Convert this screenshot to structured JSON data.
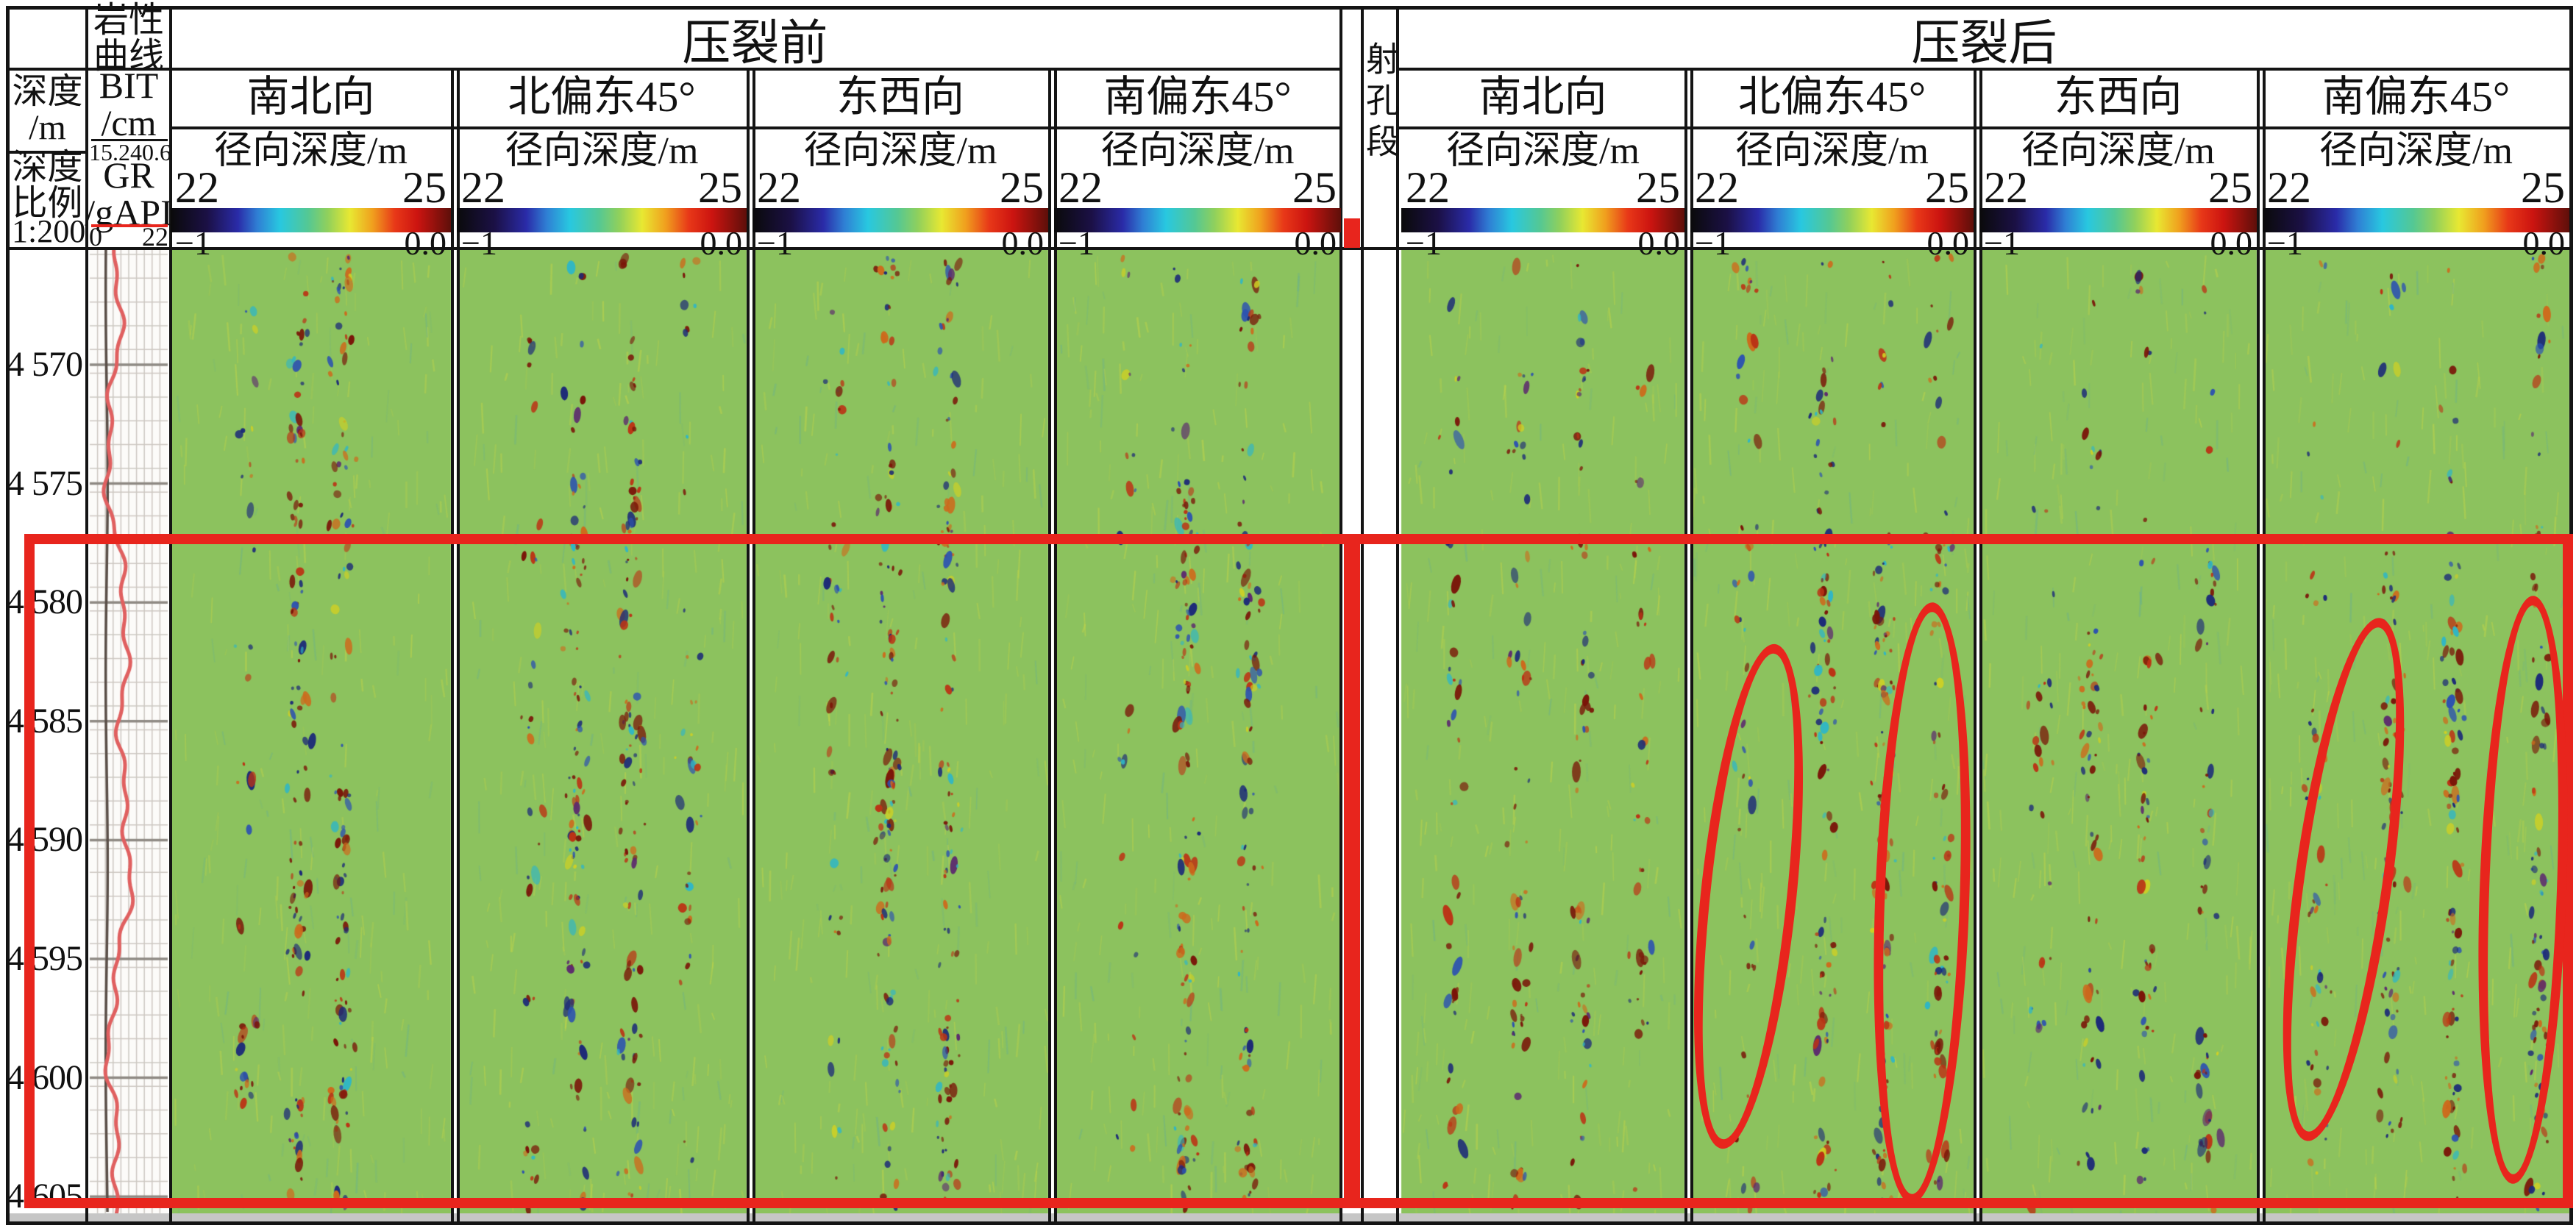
{
  "figure": {
    "pre_group_title": "压裂前",
    "post_group_title": "压裂后",
    "perforation_label": "射孔段",
    "depth_header": "深度\n/m",
    "depth_scale_header": "深度\n比例",
    "depth_scale_value": "1:200",
    "lithology_header": "岩性\n曲线",
    "bit_header": "BIT\n/cm",
    "bit_min": "15.2",
    "bit_max": "40.6",
    "gr_header": "GR\n/gAPI",
    "gr_min": "0",
    "gr_max": "22"
  },
  "panels": {
    "titles": [
      "南北向",
      "北偏东45°",
      "东西向",
      "南偏东45°"
    ],
    "radial_label": "径向深度/m",
    "scale_min": "22",
    "scale_max": "25",
    "bar_min": "−1",
    "bar_max": "0.0"
  },
  "depth_ticks": [
    "4 570",
    "4 575",
    "4 580",
    "4 585",
    "4 590",
    "4 595",
    "4 600",
    "4 605"
  ],
  "colors": {
    "annotation_red": "#e8251d",
    "panel_green": "#8cc25e",
    "gr_curve": "#e06060",
    "bit_curve": "#5a4f48"
  },
  "chart_data": {
    "type": "heatmap",
    "groups": [
      {
        "label": "压裂前",
        "panels": [
          "南北向",
          "北偏东45°",
          "东西向",
          "南偏东45°"
        ]
      },
      {
        "label": "压裂后",
        "panels": [
          "南北向",
          "北偏东45°",
          "东西向",
          "南偏东45°"
        ]
      }
    ],
    "x_axis": {
      "label": "径向深度/m",
      "min": 22,
      "max": 25
    },
    "colorbar": {
      "min": -1,
      "max": 0.0
    },
    "y_axis": {
      "label": "深度/m",
      "scale": "1:200",
      "ticks": [
        4570,
        4575,
        4580,
        4585,
        4590,
        4595,
        4600,
        4605
      ]
    },
    "lithology_curves": [
      {
        "name": "BIT",
        "unit": "cm",
        "min": 15.2,
        "max": 40.6,
        "color": "dark-gray"
      },
      {
        "name": "GR",
        "unit": "gAPI",
        "min": 0,
        "max": 22,
        "color": "red"
      }
    ],
    "perforation_track": {
      "label": "射孔段",
      "marked_interval_depth_m": [
        4577,
        4605
      ]
    },
    "annotations": {
      "highlight_rect_depth_m": [
        4577,
        4605
      ],
      "ellipse_marks": [
        {
          "group": "压裂后",
          "panel": "北偏东45°",
          "depth_m": [
            4581.5,
            4602.5
          ]
        },
        {
          "group": "压裂后",
          "panel": "北偏东45°",
          "depth_m": [
            4580,
            4605
          ]
        },
        {
          "group": "压裂后",
          "panel": "南偏东45°",
          "depth_m": [
            4580.5,
            4602.5
          ]
        },
        {
          "group": "压裂后",
          "panel": "南偏东45°",
          "depth_m": [
            4579.5,
            4604
          ]
        }
      ]
    },
    "panels": [
      {
        "group": "压裂前",
        "azimuth": "南北向",
        "noise_bands": [
          {
            "x_frac": 0.27,
            "density": 0.35
          },
          {
            "x_frac": 0.45,
            "density": 0.9
          },
          {
            "x_frac": 0.61,
            "density": 0.85
          }
        ]
      },
      {
        "group": "压裂前",
        "azimuth": "北偏东45°",
        "noise_bands": [
          {
            "x_frac": 0.25,
            "density": 0.3
          },
          {
            "x_frac": 0.41,
            "density": 0.95
          },
          {
            "x_frac": 0.6,
            "density": 0.9
          },
          {
            "x_frac": 0.8,
            "density": 0.35
          }
        ]
      },
      {
        "group": "压裂前",
        "azimuth": "东西向",
        "noise_bands": [
          {
            "x_frac": 0.28,
            "density": 0.35
          },
          {
            "x_frac": 0.46,
            "density": 0.9
          },
          {
            "x_frac": 0.66,
            "density": 0.85
          }
        ]
      },
      {
        "group": "压裂前",
        "azimuth": "南偏东45°",
        "noise_bands": [
          {
            "x_frac": 0.25,
            "density": 0.3
          },
          {
            "x_frac": 0.46,
            "density": 0.9
          },
          {
            "x_frac": 0.68,
            "density": 0.85
          }
        ]
      },
      {
        "group": "压裂后",
        "azimuth": "南北向",
        "noise_bands": [
          {
            "x_frac": 0.18,
            "density": 0.3
          },
          {
            "x_frac": 0.42,
            "density": 0.5
          },
          {
            "x_frac": 0.63,
            "density": 0.5
          },
          {
            "x_frac": 0.85,
            "density": 0.25
          }
        ]
      },
      {
        "group": "压裂后",
        "azimuth": "北偏东45°",
        "noise_bands": [
          {
            "x_frac": 0.2,
            "density": 0.35
          },
          {
            "x_frac": 0.47,
            "density": 0.75
          },
          {
            "x_frac": 0.68,
            "density": 0.7
          },
          {
            "x_frac": 0.88,
            "density": 0.45
          }
        ]
      },
      {
        "group": "压裂后",
        "azimuth": "东西向",
        "noise_bands": [
          {
            "x_frac": 0.22,
            "density": 0.3
          },
          {
            "x_frac": 0.4,
            "density": 0.5
          },
          {
            "x_frac": 0.6,
            "density": 0.5
          },
          {
            "x_frac": 0.82,
            "density": 0.4
          }
        ]
      },
      {
        "group": "压裂后",
        "azimuth": "南偏东45°",
        "noise_bands": [
          {
            "x_frac": 0.18,
            "density": 0.45
          },
          {
            "x_frac": 0.42,
            "density": 0.7
          },
          {
            "x_frac": 0.62,
            "density": 0.65
          },
          {
            "x_frac": 0.9,
            "density": 0.6
          }
        ]
      }
    ]
  }
}
